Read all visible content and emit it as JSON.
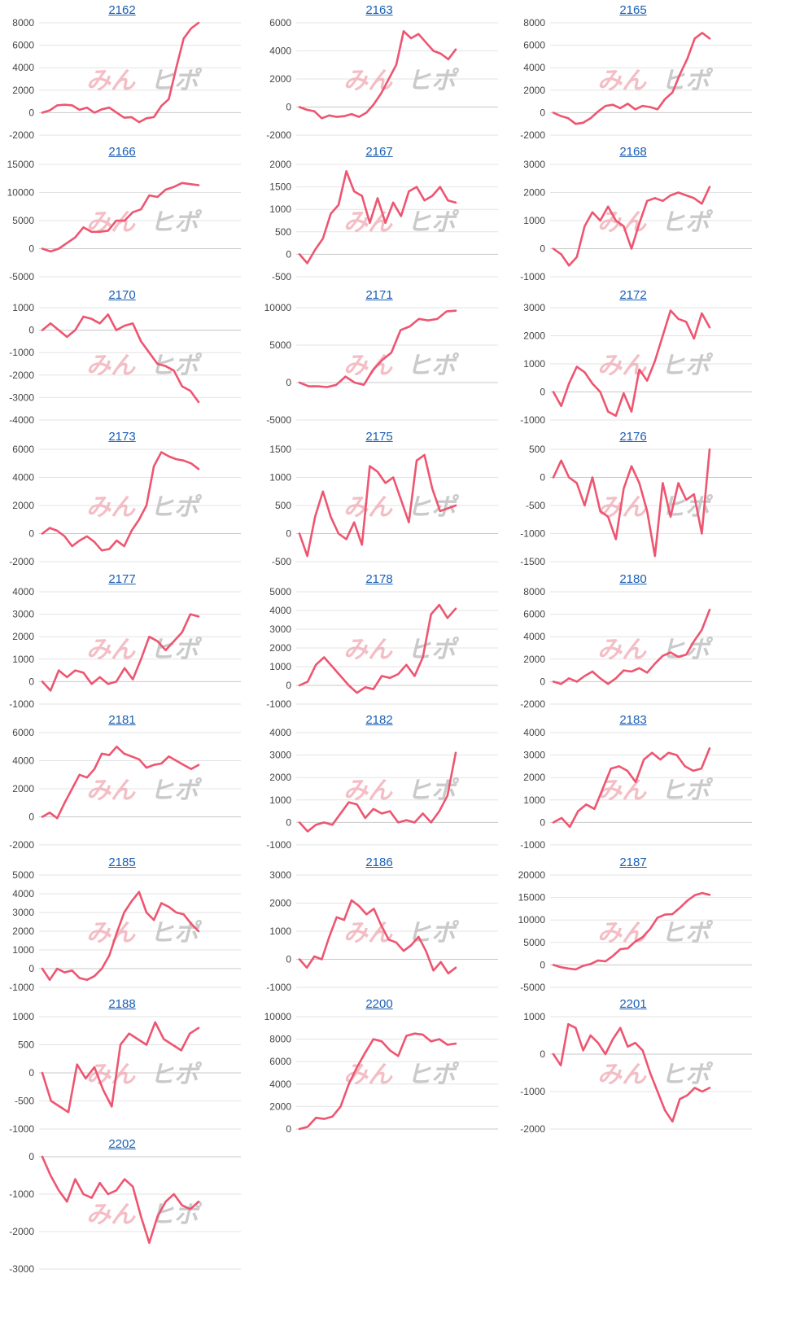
{
  "watermark": [
    "みん",
    "ヒポ"
  ],
  "colors": {
    "line": "#ee5570",
    "title_link": "#1a5fb4"
  },
  "chart_data": [
    {
      "type": "line",
      "title": "2162",
      "ylim": [
        -2000,
        8000
      ],
      "ticks": [
        -2000,
        0,
        2000,
        4000,
        6000,
        8000
      ],
      "values": [
        0,
        200,
        650,
        700,
        650,
        250,
        450,
        0,
        300,
        450,
        0,
        -450,
        -400,
        -850,
        -500,
        -400,
        600,
        1200,
        4000,
        6600,
        7500,
        8000
      ]
    },
    {
      "type": "line",
      "title": "2163",
      "ylim": [
        -2000,
        6000
      ],
      "ticks": [
        -2000,
        0,
        2000,
        4000,
        6000
      ],
      "values": [
        0,
        -200,
        -300,
        -800,
        -600,
        -700,
        -650,
        -500,
        -700,
        -400,
        200,
        1000,
        2000,
        3000,
        5400,
        4900,
        5200,
        4600,
        4000,
        3800,
        3400,
        4100
      ]
    },
    {
      "type": "line",
      "title": "2165",
      "ylim": [
        -2000,
        8000
      ],
      "ticks": [
        -2000,
        0,
        2000,
        4000,
        6000,
        8000
      ],
      "values": [
        0,
        -300,
        -500,
        -1000,
        -900,
        -500,
        100,
        600,
        700,
        400,
        800,
        300,
        600,
        500,
        300,
        1200,
        1800,
        3400,
        4800,
        6600,
        7100,
        6600
      ]
    },
    {
      "type": "line",
      "title": "2166",
      "ylim": [
        -5000,
        15000
      ],
      "ticks": [
        -5000,
        0,
        5000,
        10000,
        15000
      ],
      "values": [
        0,
        -500,
        0,
        1000,
        2000,
        3800,
        3000,
        3000,
        3200,
        5000,
        5000,
        6500,
        7000,
        9500,
        9200,
        10500,
        11000,
        11700,
        11500,
        11300
      ]
    },
    {
      "type": "line",
      "title": "2167",
      "ylim": [
        -500,
        2000
      ],
      "ticks": [
        -500,
        0,
        500,
        1000,
        1500,
        2000
      ],
      "values": [
        0,
        -200,
        100,
        350,
        900,
        1100,
        1850,
        1400,
        1300,
        700,
        1250,
        700,
        1150,
        850,
        1400,
        1500,
        1200,
        1300,
        1500,
        1200,
        1150
      ]
    },
    {
      "type": "line",
      "title": "2168",
      "ylim": [
        -1000,
        3000
      ],
      "ticks": [
        -1000,
        0,
        1000,
        2000,
        3000
      ],
      "values": [
        0,
        -200,
        -600,
        -300,
        800,
        1300,
        1000,
        1500,
        1000,
        800,
        0,
        900,
        1700,
        1800,
        1700,
        1900,
        2000,
        1900,
        1800,
        1600,
        2200
      ]
    },
    {
      "type": "line",
      "title": "2170",
      "ylim": [
        -4000,
        1000
      ],
      "ticks": [
        -4000,
        -3000,
        -2000,
        -1000,
        0,
        1000
      ],
      "values": [
        0,
        300,
        0,
        -300,
        0,
        600,
        500,
        300,
        700,
        0,
        200,
        300,
        -500,
        -1000,
        -1500,
        -1600,
        -1800,
        -2500,
        -2700,
        -3200
      ]
    },
    {
      "type": "line",
      "title": "2171",
      "ylim": [
        -5000,
        10000
      ],
      "ticks": [
        -5000,
        0,
        5000,
        10000
      ],
      "values": [
        0,
        -500,
        -500,
        -600,
        -300,
        800,
        0,
        -300,
        1700,
        3000,
        4000,
        7000,
        7500,
        8500,
        8300,
        8500,
        9500,
        9600
      ]
    },
    {
      "type": "line",
      "title": "2172",
      "ylim": [
        -1000,
        3000
      ],
      "ticks": [
        -1000,
        0,
        1000,
        2000,
        3000
      ],
      "values": [
        0,
        -500,
        300,
        900,
        700,
        300,
        0,
        -700,
        -850,
        -50,
        -700,
        800,
        400,
        1100,
        2000,
        2900,
        2600,
        2500,
        1900,
        2800,
        2300
      ]
    },
    {
      "type": "line",
      "title": "2173",
      "ylim": [
        -2000,
        6000
      ],
      "ticks": [
        -2000,
        0,
        2000,
        4000,
        6000
      ],
      "values": [
        0,
        400,
        200,
        -200,
        -900,
        -500,
        -200,
        -600,
        -1200,
        -1100,
        -500,
        -900,
        200,
        1000,
        2000,
        4800,
        5800,
        5500,
        5300,
        5200,
        5000,
        4600
      ]
    },
    {
      "type": "line",
      "title": "2175",
      "ylim": [
        -500,
        1500
      ],
      "ticks": [
        -500,
        0,
        500,
        1000,
        1500
      ],
      "values": [
        0,
        -400,
        300,
        750,
        300,
        0,
        -100,
        200,
        -200,
        1200,
        1100,
        900,
        1000,
        600,
        200,
        1300,
        1400,
        800,
        400,
        450,
        500
      ]
    },
    {
      "type": "line",
      "title": "2176",
      "ylim": [
        -1500,
        500
      ],
      "ticks": [
        -1500,
        -1000,
        -500,
        0,
        500
      ],
      "values": [
        0,
        300,
        0,
        -100,
        -500,
        0,
        -600,
        -700,
        -1100,
        -200,
        200,
        -100,
        -600,
        -1400,
        -100,
        -700,
        -100,
        -400,
        -300,
        -1000,
        500
      ]
    },
    {
      "type": "line",
      "title": "2177",
      "ylim": [
        -1000,
        4000
      ],
      "ticks": [
        -1000,
        0,
        1000,
        2000,
        3000,
        4000
      ],
      "values": [
        0,
        -400,
        500,
        200,
        500,
        400,
        -100,
        200,
        -100,
        0,
        600,
        100,
        1000,
        2000,
        1800,
        1400,
        1800,
        2200,
        3000,
        2900
      ]
    },
    {
      "type": "line",
      "title": "2178",
      "ylim": [
        -1000,
        5000
      ],
      "ticks": [
        -1000,
        0,
        1000,
        2000,
        3000,
        4000,
        5000
      ],
      "values": [
        0,
        200,
        1100,
        1500,
        1000,
        500,
        0,
        -400,
        -100,
        -200,
        500,
        400,
        600,
        1100,
        500,
        1500,
        3800,
        4300,
        3600,
        4100
      ]
    },
    {
      "type": "line",
      "title": "2180",
      "ylim": [
        -2000,
        8000
      ],
      "ticks": [
        -2000,
        0,
        2000,
        4000,
        6000,
        8000
      ],
      "values": [
        0,
        -200,
        300,
        0,
        500,
        900,
        300,
        -200,
        300,
        1000,
        900,
        1200,
        800,
        1600,
        2300,
        2600,
        2200,
        2400,
        3600,
        4600,
        6400
      ]
    },
    {
      "type": "line",
      "title": "2181",
      "ylim": [
        -2000,
        6000
      ],
      "ticks": [
        -2000,
        0,
        2000,
        4000,
        6000
      ],
      "values": [
        0,
        300,
        -100,
        1000,
        2000,
        3000,
        2800,
        3400,
        4500,
        4400,
        5000,
        4500,
        4300,
        4100,
        3500,
        3700,
        3800,
        4300,
        4000,
        3700,
        3400,
        3700
      ]
    },
    {
      "type": "line",
      "title": "2182",
      "ylim": [
        -1000,
        4000
      ],
      "ticks": [
        -1000,
        0,
        1000,
        2000,
        3000,
        4000
      ],
      "values": [
        0,
        -400,
        -100,
        0,
        -100,
        400,
        900,
        800,
        200,
        600,
        400,
        500,
        0,
        100,
        0,
        400,
        0,
        500,
        1200,
        3100
      ]
    },
    {
      "type": "line",
      "title": "2183",
      "ylim": [
        -1000,
        4000
      ],
      "ticks": [
        -1000,
        0,
        1000,
        2000,
        3000,
        4000
      ],
      "values": [
        0,
        200,
        -200,
        500,
        800,
        600,
        1500,
        2400,
        2500,
        2300,
        1800,
        2800,
        3100,
        2800,
        3100,
        3000,
        2500,
        2300,
        2400,
        3300
      ]
    },
    {
      "type": "line",
      "title": "2185",
      "ylim": [
        -1000,
        5000
      ],
      "ticks": [
        -1000,
        0,
        1000,
        2000,
        3000,
        4000,
        5000
      ],
      "values": [
        0,
        -600,
        0,
        -200,
        -100,
        -500,
        -600,
        -400,
        0,
        700,
        1900,
        3000,
        3600,
        4100,
        3000,
        2600,
        3500,
        3300,
        3000,
        2900,
        2400,
        2000
      ]
    },
    {
      "type": "line",
      "title": "2186",
      "ylim": [
        -1000,
        3000
      ],
      "ticks": [
        -1000,
        0,
        1000,
        2000,
        3000
      ],
      "values": [
        0,
        -300,
        100,
        0,
        800,
        1500,
        1400,
        2100,
        1900,
        1600,
        1800,
        1200,
        700,
        600,
        300,
        500,
        800,
        300,
        -400,
        -100,
        -500,
        -300
      ]
    },
    {
      "type": "line",
      "title": "2187",
      "ylim": [
        -5000,
        20000
      ],
      "ticks": [
        -5000,
        0,
        5000,
        10000,
        15000,
        20000
      ],
      "values": [
        0,
        -500,
        -800,
        -1000,
        -200,
        200,
        1000,
        800,
        2000,
        3500,
        3700,
        5200,
        6200,
        8000,
        10500,
        11200,
        11300,
        12700,
        14300,
        15500,
        16000,
        15600
      ]
    },
    {
      "type": "line",
      "title": "2188",
      "ylim": [
        -1000,
        1000
      ],
      "ticks": [
        -1000,
        -500,
        0,
        500,
        1000
      ],
      "values": [
        0,
        -500,
        -600,
        -700,
        150,
        -100,
        100,
        -300,
        -600,
        500,
        700,
        600,
        500,
        900,
        600,
        500,
        400,
        700,
        800
      ]
    },
    {
      "type": "line",
      "title": "2200",
      "ylim": [
        0,
        10000
      ],
      "ticks": [
        0,
        2000,
        4000,
        6000,
        8000,
        10000
      ],
      "values": [
        0,
        200,
        1000,
        900,
        1100,
        2000,
        4000,
        5500,
        6800,
        8000,
        7800,
        7000,
        6500,
        8300,
        8500,
        8400,
        7800,
        8000,
        7500,
        7600
      ]
    },
    {
      "type": "line",
      "title": "2201",
      "ylim": [
        -2000,
        1000
      ],
      "ticks": [
        -2000,
        -1000,
        0,
        1000
      ],
      "values": [
        0,
        -300,
        800,
        700,
        100,
        500,
        300,
        0,
        400,
        700,
        200,
        300,
        100,
        -500,
        -1000,
        -1500,
        -1800,
        -1200,
        -1100,
        -900,
        -1000,
        -900
      ]
    },
    {
      "type": "line",
      "title": "2202",
      "ylim": [
        -3000,
        0
      ],
      "ticks": [
        -3000,
        -2000,
        -1000,
        0
      ],
      "values": [
        0,
        -500,
        -900,
        -1200,
        -600,
        -1000,
        -1100,
        -700,
        -1000,
        -900,
        -600,
        -800,
        -1600,
        -2300,
        -1600,
        -1200,
        -1000,
        -1300,
        -1400,
        -1200
      ]
    }
  ]
}
